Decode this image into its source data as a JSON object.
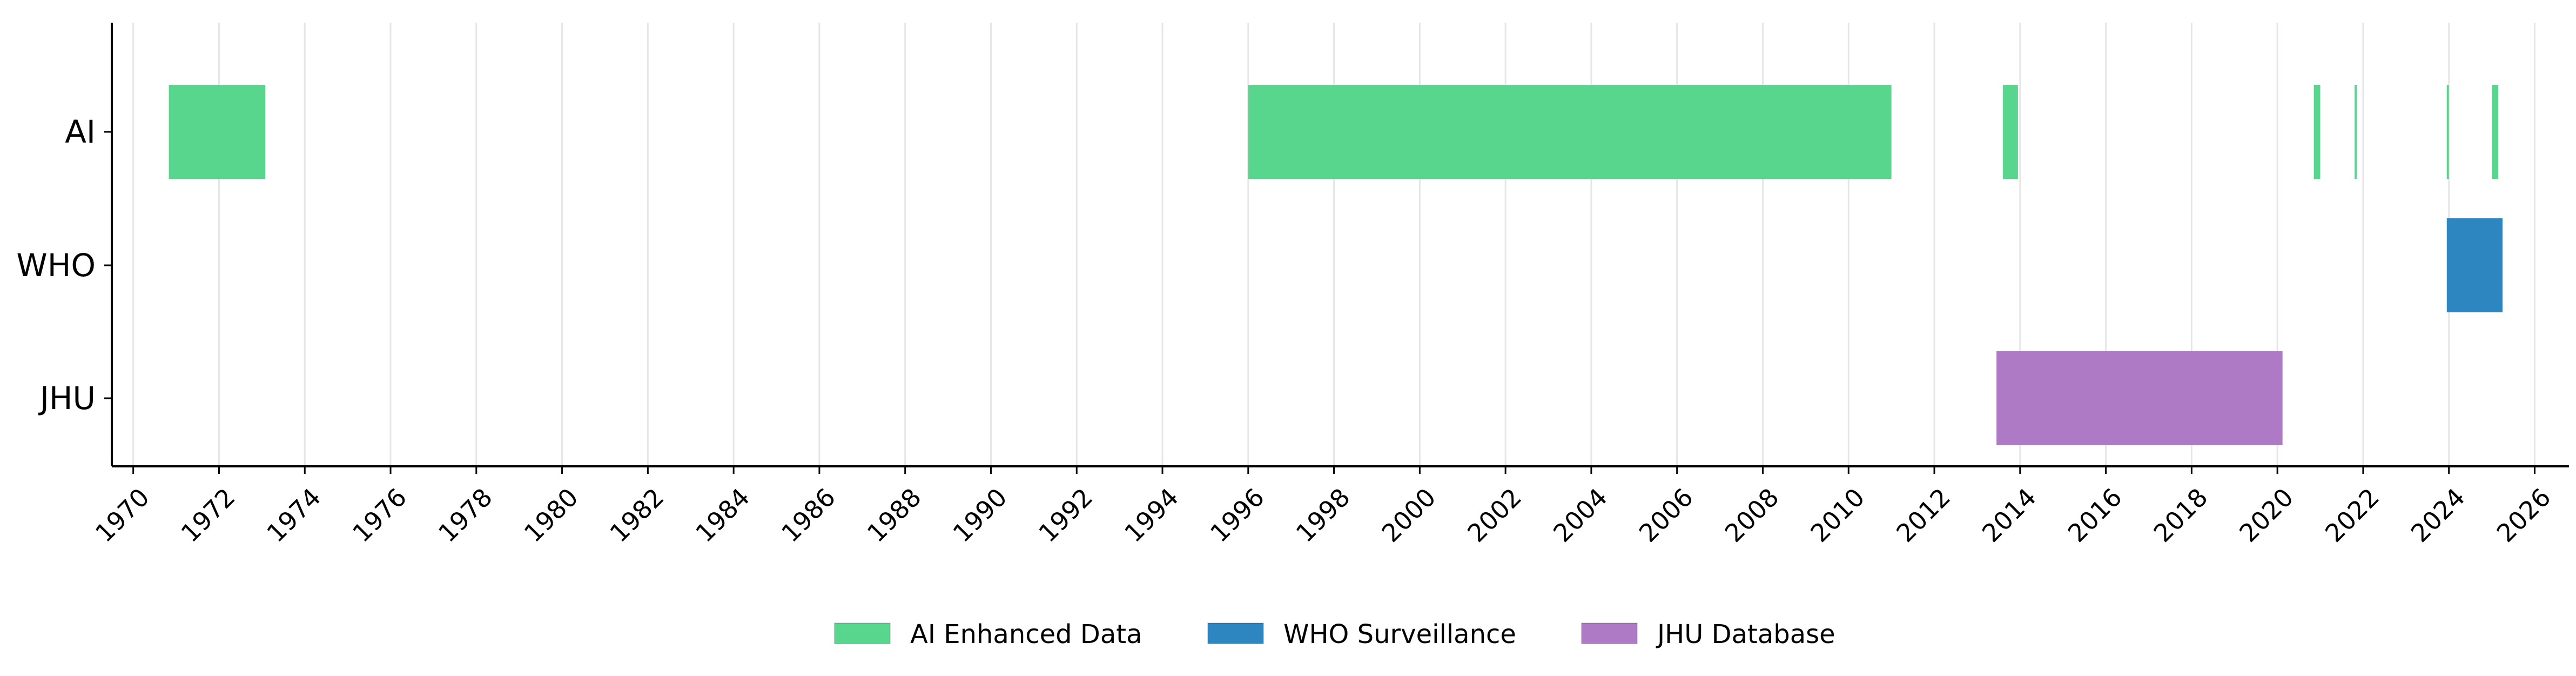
{
  "chart_data": {
    "type": "timeline",
    "title": "",
    "xlabel": "",
    "ylabel": "",
    "xlim": [
      1969.5,
      2026.8
    ],
    "x_ticks": [
      "1970",
      "1972",
      "1974",
      "1976",
      "1978",
      "1980",
      "1982",
      "1984",
      "1986",
      "1988",
      "1990",
      "1992",
      "1994",
      "1996",
      "1998",
      "2000",
      "2002",
      "2004",
      "2006",
      "2008",
      "2010",
      "2012",
      "2014",
      "2016",
      "2018",
      "2020",
      "2022",
      "2024",
      "2026"
    ],
    "categories": [
      "AI",
      "WHO",
      "JHU"
    ],
    "grid": "vertical",
    "legend_position": "bottom-center",
    "series": [
      {
        "name": "AI Enhanced Data",
        "color": "#58d68d",
        "category": "AI",
        "intervals": [
          [
            1970.83,
            1973.08
          ],
          [
            1996.0,
            2011.0
          ],
          [
            2013.6,
            2013.95
          ],
          [
            2020.85,
            2021.0
          ],
          [
            2021.8,
            2021.85
          ],
          [
            2023.95,
            2024.0
          ],
          [
            2025.0,
            2025.15
          ]
        ]
      },
      {
        "name": "WHO Surveillance",
        "color": "#2e86c1",
        "category": "WHO",
        "intervals": [
          [
            2023.95,
            2025.25
          ]
        ]
      },
      {
        "name": "JHU Database",
        "color": "#af7ac5",
        "category": "JHU",
        "intervals": [
          [
            2013.45,
            2020.12
          ]
        ]
      }
    ]
  }
}
